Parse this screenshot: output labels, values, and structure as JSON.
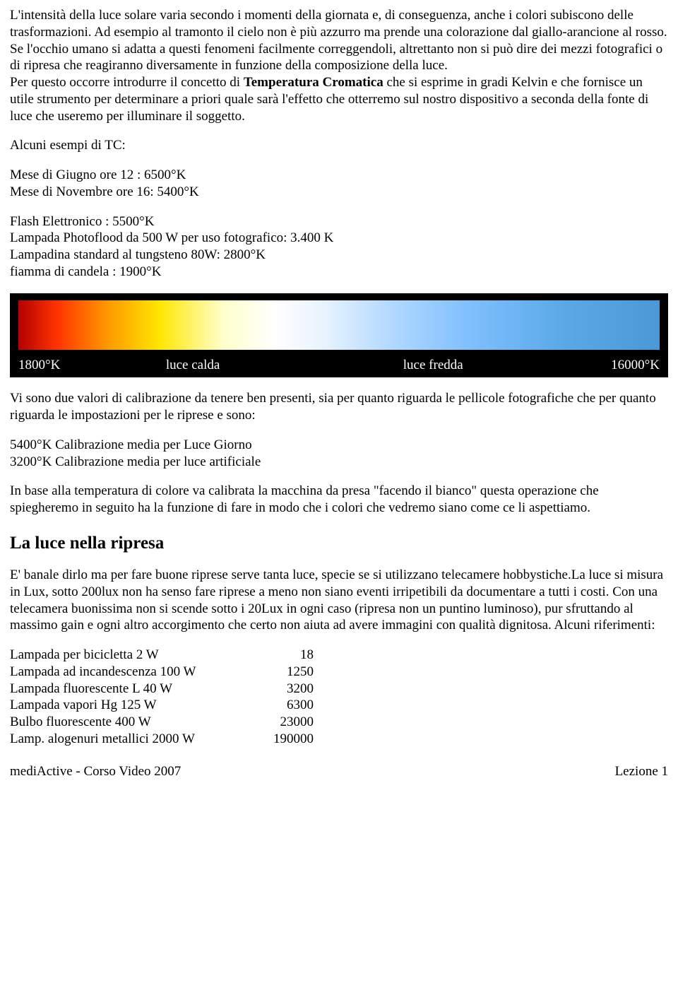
{
  "para1": "L'intensità della luce solare varia secondo i momenti della giornata e, di conseguenza, anche i colori subiscono delle trasformazioni. Ad esempio al tramonto il cielo non è più azzurro ma prende una colorazione dal giallo-arancione al rosso.",
  "para2": "Se l'occhio umano si adatta a questi fenomeni facilmente correggendoli, altrettanto non si può dire dei mezzi fotografici o di ripresa che reagiranno diversamente in funzione della composizione della luce.",
  "para3a": "Per questo occorre introdurre il concetto di ",
  "para3b": "Temperatura Cromatica",
  "para3c": " che si esprime in gradi Kelvin e che fornisce un utile strumento per determinare a priori quale sarà l'effetto che otterremo sul nostro dispositivo a seconda della fonte di luce che useremo per illuminare il soggetto.",
  "tc_heading": "Alcuni esempi di TC:",
  "tc_month1": "Mese di Giugno ore 12 :   6500°K",
  "tc_month2": "Mese di Novembre ore 16: 5400°K",
  "tc_flash": "Flash Elettronico :  5500°K",
  "tc_photo": "Lampada Photoflood da 500 W per uso fotografico: 3.400 K",
  "tc_tung": "Lampadina standard al tungsteno 80W:  2800°K",
  "tc_candle": "fiamma di candela : 1900°K",
  "grad_labels": {
    "a": "1800°K",
    "b": "luce calda",
    "c": "luce fredda",
    "d": "16000°K"
  },
  "calib_intro": "Vi sono due valori di calibrazione da tenere ben presenti, sia per quanto riguarda le pellicole fotografiche che per quanto riguarda le impostazioni per le riprese e sono:",
  "calib1": "5400°K  Calibrazione media per Luce Giorno",
  "calib2": "3200°K  Calibrazione media per luce artificiale",
  "calib_para": "In base alla temperatura di colore va calibrata la macchina da presa \"facendo il bianco\" questa operazione che spiegheremo in seguito ha la funzione di fare in modo che i colori che vedremo siano come ce li aspettiamo.",
  "section_title": "La luce nella ripresa",
  "ripresa_para": "E' banale dirlo ma per fare buone riprese serve tanta luce, specie se si utilizzano telecamere hobbystiche.La luce si misura in Lux, sotto 200lux non ha senso fare riprese a meno non siano eventi irripetibili da documentare a tutti i costi. Con una telecamera buonissima non si scende sotto i 20Lux in ogni caso (ripresa non un puntino luminoso), pur sfruttando al massimo gain e ogni altro accorgimento che certo non aiuta ad avere immagini con qualità dignitosa. Alcuni riferimenti:",
  "lux": [
    {
      "label": "Lampada per bicicletta 2 W",
      "value": "18"
    },
    {
      "label": "Lampada ad incandescenza 100 W",
      "value": "1250"
    },
    {
      "label": "Lampada fluorescente L 40 W",
      "value": "3200"
    },
    {
      "label": "Lampada vapori Hg   125 W",
      "value": "6300"
    },
    {
      "label": "Bulbo fluorescente 400 W",
      "value": "23000"
    },
    {
      "label": "Lamp. alogenuri metallici 2000 W",
      "value": "190000"
    }
  ],
  "footer_left": "mediActive  -  Corso Video 2007",
  "footer_right": "Lezione 1"
}
